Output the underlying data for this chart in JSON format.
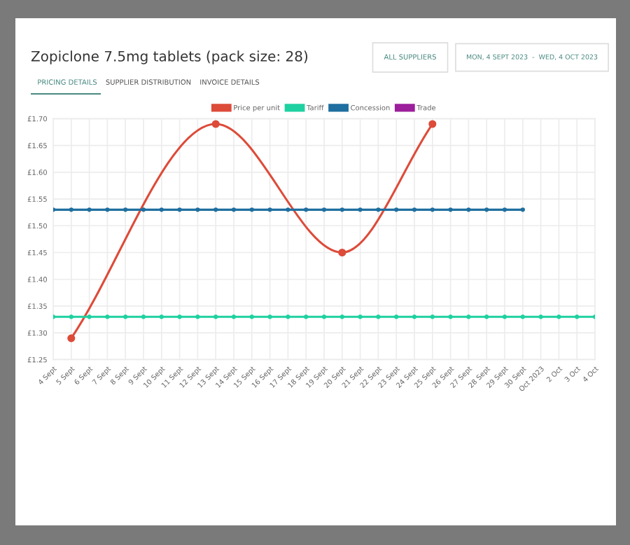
{
  "chart_data": {
    "type": "line",
    "title": "Zopiclone 7.5mg tablets (pack size: 28)",
    "annotations": [
      "ALL SUPPLIERS",
      "MON, 4 SEPT 2023  -  WED, 4 OCT 2023",
      "PRICING DETAILS",
      "SUPPLIER DISTRIBUTION",
      "INVOICE DETAILS"
    ],
    "categories": [
      "4 Sept",
      "5 Sept",
      "6 Sept",
      "7 Sept",
      "8 Sept",
      "9 Sept",
      "10 Sept",
      "11 Sept",
      "12 Sept",
      "13 Sept",
      "14 Sept",
      "15 Sept",
      "16 Sept",
      "17 Sept",
      "18 Sept",
      "19 Sept",
      "20 Sept",
      "21 Sept",
      "22 Sept",
      "23 Sept",
      "24 Sept",
      "25 Sept",
      "26 Sept",
      "27 Sept",
      "28 Sept",
      "29 Sept",
      "30 Sept",
      "Oct 2023",
      "2 Oct",
      "3 Oct",
      "4 Oct"
    ],
    "series": [
      {
        "name": "Price per unit",
        "color": "#dd4b39",
        "values": [
          null,
          1.29,
          null,
          null,
          null,
          null,
          null,
          null,
          null,
          1.69,
          null,
          null,
          null,
          null,
          null,
          null,
          1.45,
          null,
          null,
          null,
          null,
          1.69,
          null,
          null,
          null,
          null,
          null,
          null,
          null,
          null,
          null
        ]
      },
      {
        "name": "Tariff",
        "color": "#1fd1a1",
        "values": [
          1.33,
          1.33,
          1.33,
          1.33,
          1.33,
          1.33,
          1.33,
          1.33,
          1.33,
          1.33,
          1.33,
          1.33,
          1.33,
          1.33,
          1.33,
          1.33,
          1.33,
          1.33,
          1.33,
          1.33,
          1.33,
          1.33,
          1.33,
          1.33,
          1.33,
          1.33,
          1.33,
          1.33,
          1.33,
          1.33,
          1.33
        ]
      },
      {
        "name": "Concession",
        "color": "#1f6fa0",
        "values": [
          1.53,
          1.53,
          1.53,
          1.53,
          1.53,
          1.53,
          1.53,
          1.53,
          1.53,
          1.53,
          1.53,
          1.53,
          1.53,
          1.53,
          1.53,
          1.53,
          1.53,
          1.53,
          1.53,
          1.53,
          1.53,
          1.53,
          1.53,
          1.53,
          1.53,
          1.53,
          1.53,
          null,
          null,
          null,
          null
        ]
      },
      {
        "name": "Trade",
        "color": "#9c1f9c",
        "values": [
          null,
          null,
          null,
          null,
          null,
          null,
          null,
          null,
          null,
          null,
          null,
          null,
          null,
          null,
          null,
          null,
          null,
          null,
          null,
          null,
          null,
          null,
          null,
          null,
          null,
          null,
          null,
          null,
          null,
          null,
          null
        ]
      }
    ],
    "ylim": [
      1.25,
      1.7
    ],
    "yticks": [
      {
        "value": 1.25,
        "label": "£1.25"
      },
      {
        "value": 1.3,
        "label": "£1.30"
      },
      {
        "value": 1.35,
        "label": "£1.35"
      },
      {
        "value": 1.4,
        "label": "£1.40"
      },
      {
        "value": 1.45,
        "label": "£1.45"
      },
      {
        "value": 1.5,
        "label": "£1.50"
      },
      {
        "value": 1.55,
        "label": "£1.55"
      },
      {
        "value": 1.6,
        "label": "£1.60"
      },
      {
        "value": 1.65,
        "label": "£1.65"
      },
      {
        "value": 1.7,
        "label": "£1.70"
      }
    ],
    "grid": true,
    "legend": "top",
    "marker": "circle",
    "line_style": "solid"
  }
}
